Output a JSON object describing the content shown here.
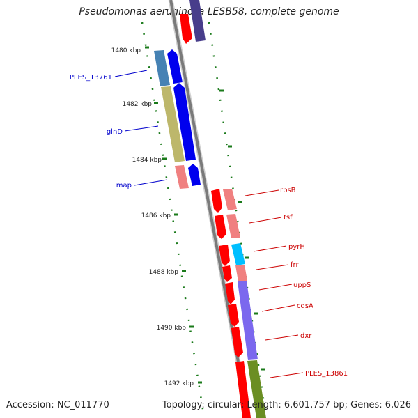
{
  "title": "Pseudomonas aeruginosa LESB58, complete genome",
  "accession": "Accession: NC_011770",
  "topology": "Topology: circular; Length: 6,601,757 bp; Genes: 6,026",
  "colors": {
    "backbone": "#808080",
    "tick": "#1a7a1a",
    "left_label": "#0000cc",
    "right_label": "#cc0000"
  },
  "kbp_labels": [
    "1480 kbp",
    "1482 kbp",
    "1484 kbp",
    "1486 kbp",
    "1488 kbp",
    "1490 kbp",
    "1492 kbp"
  ],
  "left_genes": [
    {
      "label": "PLES_13761",
      "color": "#4682b4"
    },
    {
      "label": "glnD",
      "color": "#bdb76b"
    },
    {
      "label": "map",
      "color": "#f08080"
    }
  ],
  "right_genes": [
    {
      "label": "rpsB",
      "color": "#f08080"
    },
    {
      "label": "tsf",
      "color": "#f08080"
    },
    {
      "label": "pyrH",
      "color": "#00bfff"
    },
    {
      "label": "frr",
      "color": "#f08080"
    },
    {
      "label": "uppS",
      "color": "#7b68ee"
    },
    {
      "label": "cdsA",
      "color": "#7b68ee"
    },
    {
      "label": "dxr",
      "color": "#7b68ee"
    },
    {
      "label": "PLES_13861",
      "color": "#6b8e23"
    }
  ]
}
